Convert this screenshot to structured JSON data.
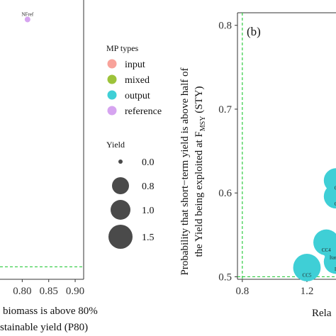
{
  "colors": {
    "input": "#F8A29A",
    "mixed": "#9DC33A",
    "output": "#3FCFD6",
    "reference": "#D6A4F0",
    "ref_line": "#2ECC40",
    "size_key": "#4a4a4a",
    "axis": "#333333"
  },
  "chart_data": [
    {
      "type": "scatter",
      "xlabel_lines": [
        "biomass is above 80%",
        "stainable yield (P80)"
      ],
      "ylabel": "",
      "x_ticks": [
        "0.80",
        "0.85",
        "0.90"
      ],
      "x_tick_values": [
        0.8,
        0.85,
        0.9
      ],
      "xlim": [
        0.758,
        0.916
      ],
      "ylim": [
        0.497,
        0.815
      ],
      "ref_hline": 0.5,
      "points": [
        {
          "label": "NFref",
          "x": 0.81,
          "y": 0.807,
          "group": "reference",
          "yield": 0.0
        }
      ]
    },
    {
      "type": "scatter",
      "panel_label": "(b)",
      "xlabel": "Rela",
      "ylabel_line1": "Probability that short−term yield is above half of",
      "ylabel_line2_pre": "the Yield being exploited at F",
      "ylabel_line2_sub": "MSY",
      "ylabel_line2_post": " (STY)",
      "y_ticks": [
        "0.5",
        "0.6",
        "0.7",
        "0.8"
      ],
      "y_tick_values": [
        0.5,
        0.6,
        0.7,
        0.8
      ],
      "x_ticks": [
        "0.8",
        "1.2"
      ],
      "x_tick_values": [
        0.8,
        1.2
      ],
      "xlim": [
        0.77,
        1.38
      ],
      "ylim": [
        0.497,
        0.815
      ],
      "ref_vline": 0.8,
      "ref_hline": 0.5,
      "points": [
        {
          "label": "CC5",
          "x": 1.2,
          "y": 0.511,
          "group": "output",
          "yield": 1.4
        },
        {
          "label": "CC4",
          "x": 1.32,
          "y": 0.541,
          "group": "output",
          "yield": 1.3
        },
        {
          "label": "Itarget",
          "x": 1.38,
          "y": 0.532,
          "group": "output",
          "yield": 1.3
        },
        {
          "label": "It",
          "x": 1.38,
          "y": 0.518,
          "group": "output",
          "yield": 1.2
        },
        {
          "label": "C",
          "x": 1.38,
          "y": 0.596,
          "group": "output",
          "yield": 1.2
        },
        {
          "label": "C",
          "x": 1.38,
          "y": 0.615,
          "group": "output",
          "yield": 1.2
        }
      ]
    }
  ],
  "legend": {
    "mp_title": "MP types",
    "mp_items": [
      {
        "label": "input",
        "group": "input"
      },
      {
        "label": "mixed",
        "group": "mixed"
      },
      {
        "label": "output",
        "group": "output"
      },
      {
        "label": "reference",
        "group": "reference"
      }
    ],
    "yield_title": "Yield",
    "yield_items": [
      {
        "label": "0.0",
        "value": 0.0
      },
      {
        "label": "0.8",
        "value": 0.8
      },
      {
        "label": "1.0",
        "value": 1.0
      },
      {
        "label": "1.5",
        "value": 1.5
      }
    ]
  }
}
